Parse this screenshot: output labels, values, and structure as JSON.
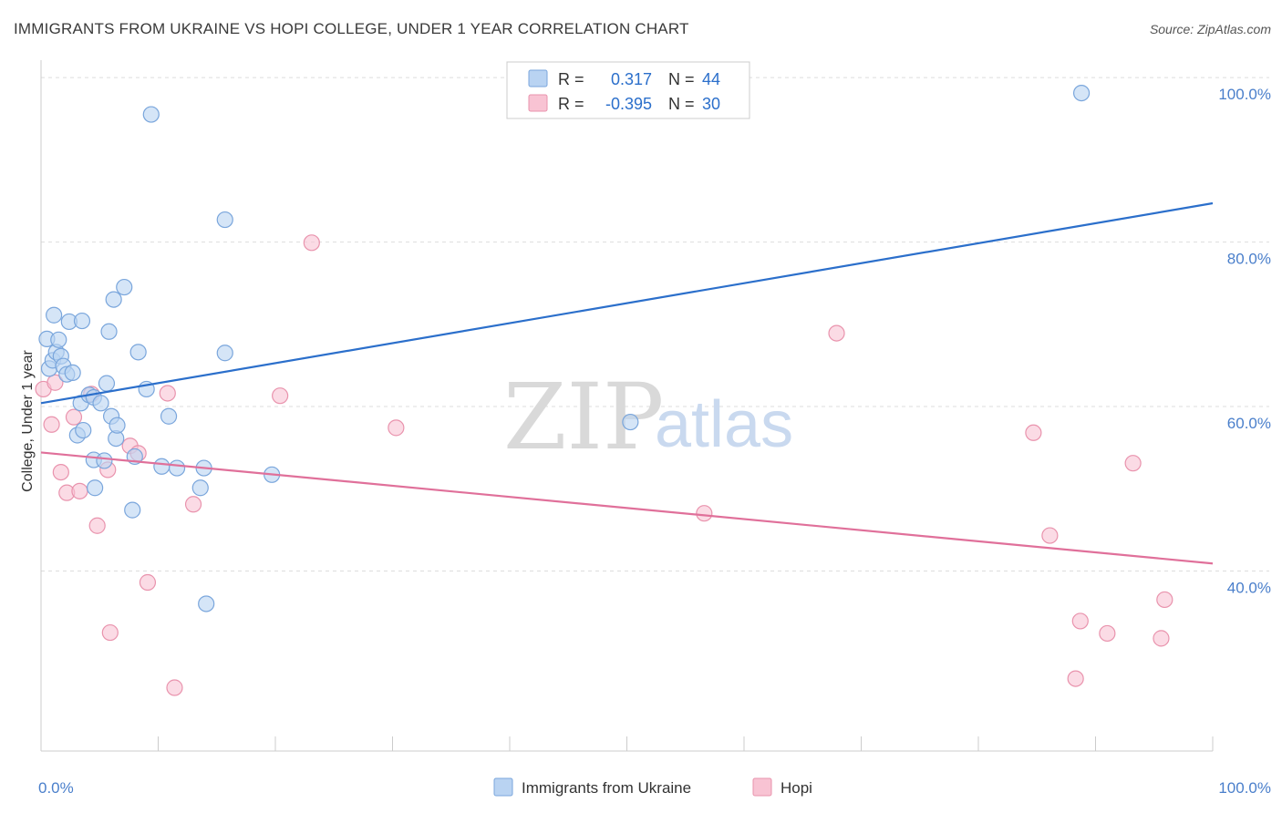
{
  "title": "IMMIGRANTS FROM UKRAINE VS HOPI COLLEGE, UNDER 1 YEAR CORRELATION CHART",
  "source": "Source: ZipAtlas.com",
  "watermark": {
    "zip": "ZIP",
    "atlas": "atlas"
  },
  "colors": {
    "blue_fill": "#b9d3f2",
    "blue_stroke": "#7aa6dc",
    "blue_line": "#2b6fcb",
    "pink_fill": "#f8c3d3",
    "pink_stroke": "#e993ad",
    "pink_line": "#e0709a",
    "r_text": "#333333",
    "value_text": "#2b6fcb",
    "grid": "#dddddd"
  },
  "legend": {
    "rows": [
      {
        "r_label": "R =",
        "r_value": "0.317",
        "n_label": "N =",
        "n_value": "44",
        "series": "blue"
      },
      {
        "r_label": "R =",
        "r_value": "-0.395",
        "n_label": "N =",
        "n_value": "30",
        "series": "pink"
      }
    ]
  },
  "chart_data": {
    "type": "scatter",
    "title": "IMMIGRANTS FROM UKRAINE VS HOPI COLLEGE, UNDER 1 YEAR CORRELATION CHART",
    "xlabel": "",
    "ylabel": "College, Under 1 year",
    "xlim": [
      0,
      100
    ],
    "ylim": [
      20,
      104
    ],
    "x_tick_labels": [
      {
        "value": 0,
        "label": "0.0%"
      },
      {
        "value": 100,
        "label": "100.0%"
      }
    ],
    "y_ticks": [
      {
        "value": 40,
        "label": "40.0%"
      },
      {
        "value": 60,
        "label": "60.0%"
      },
      {
        "value": 80,
        "label": "80.0%"
      },
      {
        "value": 100,
        "label": "100.0%"
      }
    ],
    "grid": true,
    "legend_position": "top-center",
    "series": [
      {
        "name": "Immigrants from Ukraine",
        "color": "blue",
        "trend": {
          "x": [
            0,
            100
          ],
          "y": [
            62.3,
            86.6
          ]
        },
        "points": [
          [
            0.5,
            70.1
          ],
          [
            0.7,
            66.5
          ],
          [
            1.0,
            67.5
          ],
          [
            1.1,
            73.0
          ],
          [
            1.3,
            68.5
          ],
          [
            1.5,
            70.0
          ],
          [
            1.7,
            68.0
          ],
          [
            1.9,
            66.8
          ],
          [
            2.2,
            65.8
          ],
          [
            2.4,
            72.2
          ],
          [
            2.7,
            66.0
          ],
          [
            3.1,
            58.4
          ],
          [
            3.4,
            62.3
          ],
          [
            3.5,
            72.3
          ],
          [
            3.6,
            59.0
          ],
          [
            4.1,
            63.3
          ],
          [
            4.5,
            63.0
          ],
          [
            4.5,
            55.4
          ],
          [
            4.6,
            52.0
          ],
          [
            5.1,
            62.3
          ],
          [
            5.4,
            55.3
          ],
          [
            5.6,
            64.7
          ],
          [
            5.8,
            71.0
          ],
          [
            6.0,
            60.7
          ],
          [
            6.2,
            74.9
          ],
          [
            6.4,
            58.0
          ],
          [
            6.5,
            59.6
          ],
          [
            7.1,
            76.4
          ],
          [
            7.8,
            49.3
          ],
          [
            8.0,
            55.8
          ],
          [
            8.3,
            68.5
          ],
          [
            9.0,
            64.0
          ],
          [
            9.4,
            97.4
          ],
          [
            10.3,
            54.6
          ],
          [
            10.9,
            60.7
          ],
          [
            11.6,
            54.4
          ],
          [
            13.6,
            52.0
          ],
          [
            13.9,
            54.4
          ],
          [
            14.1,
            37.9
          ],
          [
            15.7,
            84.6
          ],
          [
            15.7,
            68.4
          ],
          [
            19.7,
            53.6
          ],
          [
            50.3,
            60.0
          ],
          [
            88.8,
            100.0
          ]
        ]
      },
      {
        "name": "Hopi",
        "color": "pink",
        "trend": {
          "x": [
            0,
            100
          ],
          "y": [
            56.3,
            42.8
          ]
        },
        "points": [
          [
            0.2,
            64.0
          ],
          [
            0.9,
            59.7
          ],
          [
            1.2,
            64.8
          ],
          [
            1.7,
            53.9
          ],
          [
            2.2,
            51.4
          ],
          [
            2.8,
            60.6
          ],
          [
            3.3,
            51.6
          ],
          [
            4.3,
            63.4
          ],
          [
            4.8,
            47.4
          ],
          [
            5.7,
            54.2
          ],
          [
            5.9,
            34.4
          ],
          [
            7.6,
            57.1
          ],
          [
            8.3,
            56.2
          ],
          [
            9.1,
            40.5
          ],
          [
            11.4,
            27.7
          ],
          [
            10.8,
            63.5
          ],
          [
            13.0,
            50.0
          ],
          [
            20.4,
            63.2
          ],
          [
            23.1,
            81.8
          ],
          [
            30.3,
            59.3
          ],
          [
            56.6,
            48.9
          ],
          [
            67.9,
            70.8
          ],
          [
            84.7,
            58.7
          ],
          [
            86.1,
            46.2
          ],
          [
            88.3,
            28.8
          ],
          [
            88.7,
            35.8
          ],
          [
            91.0,
            34.3
          ],
          [
            93.2,
            55.0
          ],
          [
            95.6,
            33.7
          ],
          [
            95.9,
            38.4
          ]
        ]
      }
    ]
  }
}
